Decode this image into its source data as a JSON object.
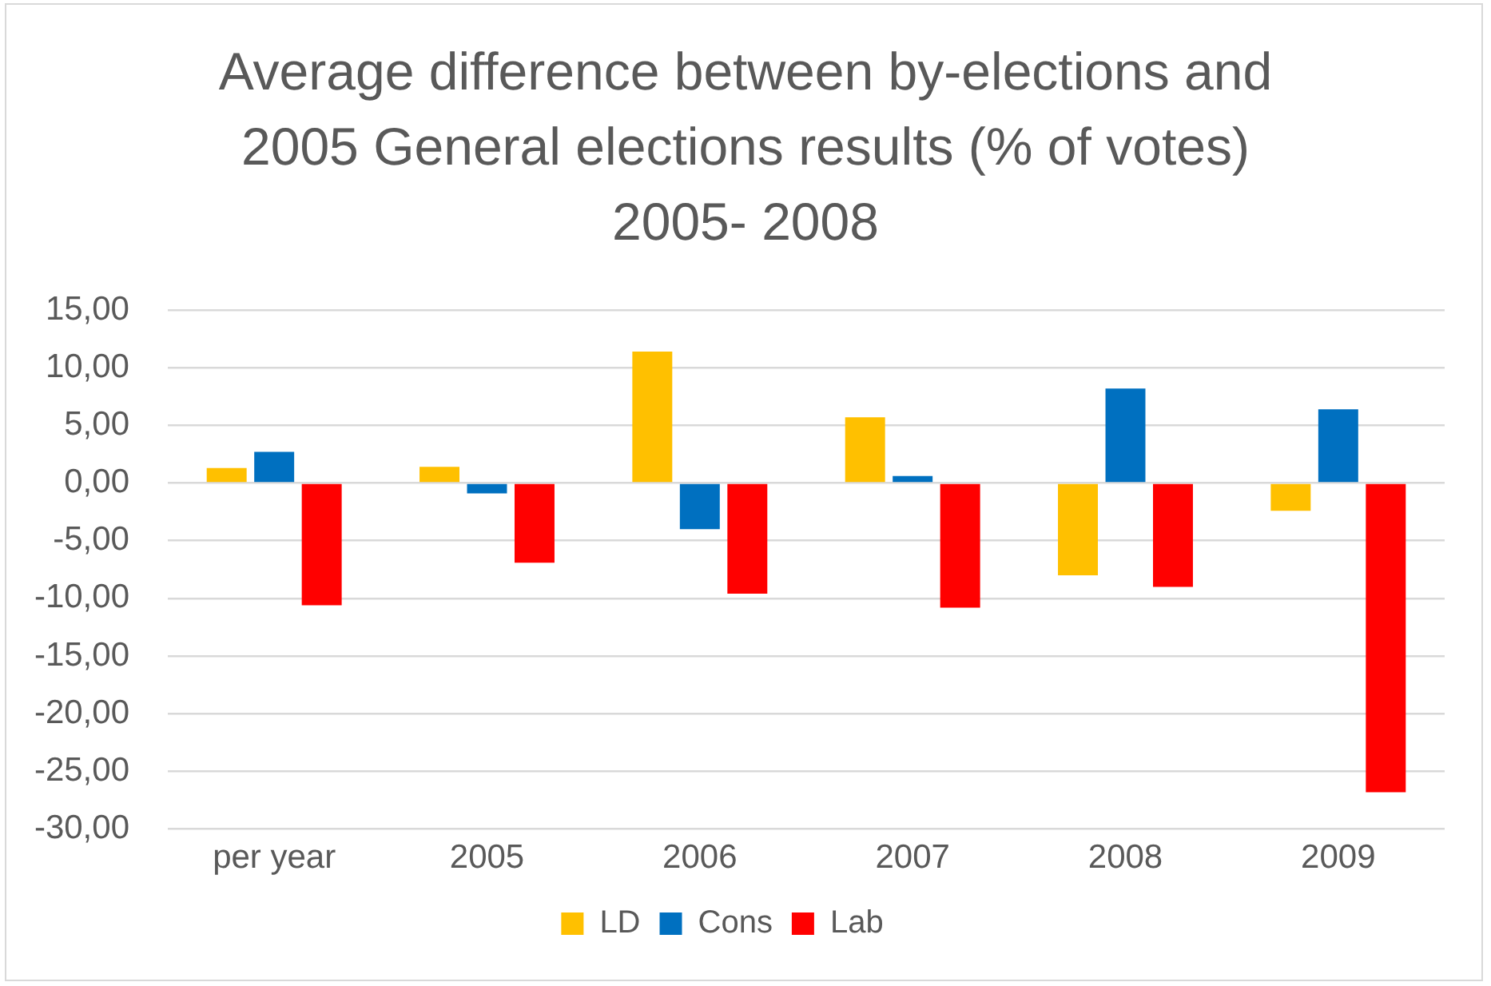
{
  "chart_data": {
    "type": "bar",
    "title": "Average difference between by-elections and 2005 General elections results (% of votes) 2005- 2008",
    "categories": [
      "per year",
      "2005",
      "2006",
      "2007",
      "2008",
      "2009"
    ],
    "series": [
      {
        "name": "LD",
        "color": "#ffc000",
        "values": [
          1.3,
          1.4,
          11.4,
          5.7,
          -8.0,
          -2.4
        ]
      },
      {
        "name": "Cons",
        "color": "#0070c0",
        "values": [
          2.7,
          -0.9,
          -4.0,
          0.6,
          8.2,
          6.4
        ]
      },
      {
        "name": "Lab",
        "color": "#ff0000",
        "values": [
          -10.6,
          -6.9,
          -9.6,
          -10.8,
          -9.0,
          -26.8
        ]
      }
    ],
    "ylim": [
      -30,
      15
    ],
    "yticks": [
      {
        "value": -30,
        "label": "-30,00"
      },
      {
        "value": -25,
        "label": "-25,00"
      },
      {
        "value": -20,
        "label": "-20,00"
      },
      {
        "value": -15,
        "label": "-15,00"
      },
      {
        "value": -10,
        "label": "-10,00"
      },
      {
        "value": -5,
        "label": "-5,00"
      },
      {
        "value": 0,
        "label": "0,00"
      },
      {
        "value": 5,
        "label": "5,00"
      },
      {
        "value": 10,
        "label": "10,00"
      },
      {
        "value": 15,
        "label": "15,00"
      }
    ],
    "grid": "y",
    "legend": "bottom"
  }
}
